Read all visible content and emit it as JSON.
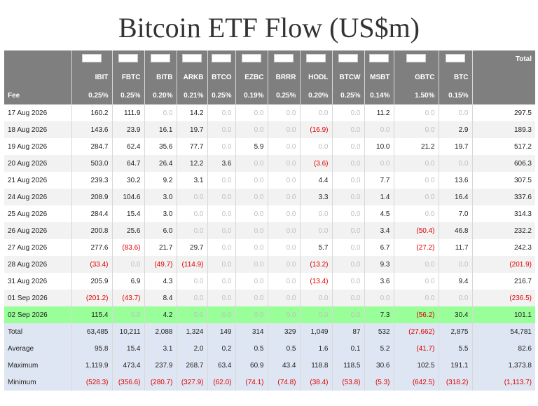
{
  "title": "Bitcoin ETF Flow (US$m)",
  "headers": {
    "total": "Total",
    "fee_label": "Fee",
    "logos": [
      "blackrock-logo",
      "fidelity-logo",
      "bitwise-logo",
      "ark-logo",
      "invesco-logo",
      "franklin-logo",
      "valkyrie-logo",
      "vaneck-logo",
      "wisdomtree-logo",
      "morgan-stanley-logo",
      "grayscale-logo",
      "grayscale-mini-logo"
    ],
    "tickers": [
      "IBIT",
      "FBTC",
      "BITB",
      "ARKB",
      "BTCO",
      "EZBC",
      "BRRR",
      "HODL",
      "BTCW",
      "MSBT",
      "GBTC",
      "BTC"
    ],
    "fees": [
      "0.25%",
      "0.25%",
      "0.20%",
      "0.21%",
      "0.25%",
      "0.19%",
      "0.25%",
      "0.20%",
      "0.25%",
      "0.14%",
      "1.50%",
      "0.15%"
    ]
  },
  "rows": [
    {
      "date": "17 Aug 2026",
      "values": [
        "160.2",
        "111.9",
        "0.0",
        "14.2",
        "0.0",
        "0.0",
        "0.0",
        "0.0",
        "0.0",
        "11.2",
        "0.0",
        "0.0"
      ],
      "total": "297.5"
    },
    {
      "date": "18 Aug 2026",
      "values": [
        "143.6",
        "23.9",
        "16.1",
        "19.7",
        "0.0",
        "0.0",
        "0.0",
        "(16.9)",
        "0.0",
        "0.0",
        "0.0",
        "2.9"
      ],
      "total": "189.3"
    },
    {
      "date": "19 Aug 2026",
      "values": [
        "284.7",
        "62.4",
        "35.6",
        "77.7",
        "0.0",
        "5.9",
        "0.0",
        "0.0",
        "0.0",
        "10.0",
        "21.2",
        "19.7"
      ],
      "total": "517.2"
    },
    {
      "date": "20 Aug 2026",
      "values": [
        "503.0",
        "64.7",
        "26.4",
        "12.2",
        "3.6",
        "0.0",
        "0.0",
        "(3.6)",
        "0.0",
        "0.0",
        "0.0",
        "0.0"
      ],
      "total": "606.3"
    },
    {
      "date": "21 Aug 2026",
      "values": [
        "239.3",
        "30.2",
        "9.2",
        "3.1",
        "0.0",
        "0.0",
        "0.0",
        "4.4",
        "0.0",
        "7.7",
        "0.0",
        "13.6"
      ],
      "total": "307.5"
    },
    {
      "date": "24 Aug 2026",
      "values": [
        "208.9",
        "104.6",
        "3.0",
        "0.0",
        "0.0",
        "0.0",
        "0.0",
        "3.3",
        "0.0",
        "1.4",
        "0.0",
        "16.4"
      ],
      "total": "337.6"
    },
    {
      "date": "25 Aug 2026",
      "values": [
        "284.4",
        "15.4",
        "3.0",
        "0.0",
        "0.0",
        "0.0",
        "0.0",
        "0.0",
        "0.0",
        "4.5",
        "0.0",
        "7.0"
      ],
      "total": "314.3"
    },
    {
      "date": "26 Aug 2026",
      "values": [
        "200.8",
        "25.6",
        "6.0",
        "0.0",
        "0.0",
        "0.0",
        "0.0",
        "0.0",
        "0.0",
        "3.4",
        "(50.4)",
        "46.8"
      ],
      "total": "232.2"
    },
    {
      "date": "27 Aug 2026",
      "values": [
        "277.6",
        "(83.6)",
        "21.7",
        "29.7",
        "0.0",
        "0.0",
        "0.0",
        "5.7",
        "0.0",
        "6.7",
        "(27.2)",
        "11.7"
      ],
      "total": "242.3"
    },
    {
      "date": "28 Aug 2026",
      "values": [
        "(33.4)",
        "0.0",
        "(49.7)",
        "(114.9)",
        "0.0",
        "0.0",
        "0.0",
        "(13.2)",
        "0.0",
        "9.3",
        "0.0",
        "0.0"
      ],
      "total": "(201.9)"
    },
    {
      "date": "31 Aug 2026",
      "values": [
        "205.9",
        "6.9",
        "4.3",
        "0.0",
        "0.0",
        "0.0",
        "0.0",
        "(13.4)",
        "0.0",
        "3.6",
        "0.0",
        "9.4"
      ],
      "total": "216.7"
    },
    {
      "date": "01 Sep 2026",
      "values": [
        "(201.2)",
        "(43.7)",
        "8.4",
        "0.0",
        "0.0",
        "0.0",
        "0.0",
        "0.0",
        "0.0",
        "0.0",
        "0.0",
        "0.0"
      ],
      "total": "(236.5)"
    },
    {
      "date": "02 Sep 2026",
      "values": [
        "115.4",
        "0.0",
        "4.2",
        "0.0",
        "0.0",
        "0.0",
        "0.0",
        "0.0",
        "0.0",
        "7.3",
        "(56.2)",
        "30.4"
      ],
      "total": "101.1",
      "highlight": true
    }
  ],
  "stats": [
    {
      "label": "Total",
      "values": [
        "63,485",
        "10,211",
        "2,088",
        "1,324",
        "149",
        "314",
        "329",
        "1,049",
        "87",
        "532",
        "(27,662)",
        "2,875"
      ],
      "total": "54,781"
    },
    {
      "label": "Average",
      "values": [
        "95.8",
        "15.4",
        "3.1",
        "2.0",
        "0.2",
        "0.5",
        "0.5",
        "1.6",
        "0.1",
        "5.2",
        "(41.7)",
        "5.5"
      ],
      "total": "82.6"
    },
    {
      "label": "Maximum",
      "values": [
        "1,119.9",
        "473.4",
        "237.9",
        "268.7",
        "63.4",
        "60.9",
        "43.4",
        "118.8",
        "118.5",
        "30.6",
        "102.5",
        "191.1"
      ],
      "total": "1,373.8"
    },
    {
      "label": "Minimum",
      "values": [
        "(528.3)",
        "(356.6)",
        "(280.7)",
        "(327.9)",
        "(62.0)",
        "(74.1)",
        "(74.8)",
        "(38.4)",
        "(53.8)",
        "(5.3)",
        "(642.5)",
        "(318.2)"
      ],
      "total": "(1,113.7)"
    }
  ]
}
